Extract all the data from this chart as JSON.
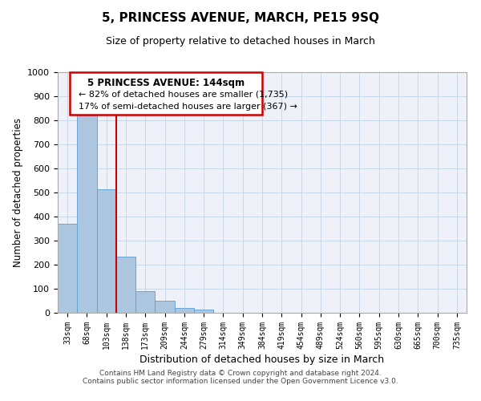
{
  "title": "5, PRINCESS AVENUE, MARCH, PE15 9SQ",
  "subtitle": "Size of property relative to detached houses in March",
  "xlabel": "Distribution of detached houses by size in March",
  "ylabel": "Number of detached properties",
  "bar_labels": [
    "33sqm",
    "68sqm",
    "103sqm",
    "138sqm",
    "173sqm",
    "209sqm",
    "244sqm",
    "279sqm",
    "314sqm",
    "349sqm",
    "384sqm",
    "419sqm",
    "454sqm",
    "489sqm",
    "524sqm",
    "560sqm",
    "595sqm",
    "630sqm",
    "665sqm",
    "700sqm",
    "735sqm"
  ],
  "bar_values": [
    370,
    820,
    515,
    235,
    90,
    50,
    20,
    12,
    0,
    0,
    0,
    0,
    0,
    0,
    0,
    0,
    0,
    0,
    0,
    0,
    0
  ],
  "bar_color": "#adc6e0",
  "bar_edge_color": "#5a9fd4",
  "vline_after_bar": 2,
  "vline_color": "#cc0000",
  "ylim": [
    0,
    1000
  ],
  "yticks": [
    0,
    100,
    200,
    300,
    400,
    500,
    600,
    700,
    800,
    900,
    1000
  ],
  "annotation_title": "5 PRINCESS AVENUE: 144sqm",
  "annotation_line1": "← 82% of detached houses are smaller (1,735)",
  "annotation_line2": "17% of semi-detached houses are larger (367) →",
  "footer_line1": "Contains HM Land Registry data © Crown copyright and database right 2024.",
  "footer_line2": "Contains public sector information licensed under the Open Government Licence v3.0.",
  "grid_color": "#c8d8e8",
  "bg_color": "#eef2f8"
}
